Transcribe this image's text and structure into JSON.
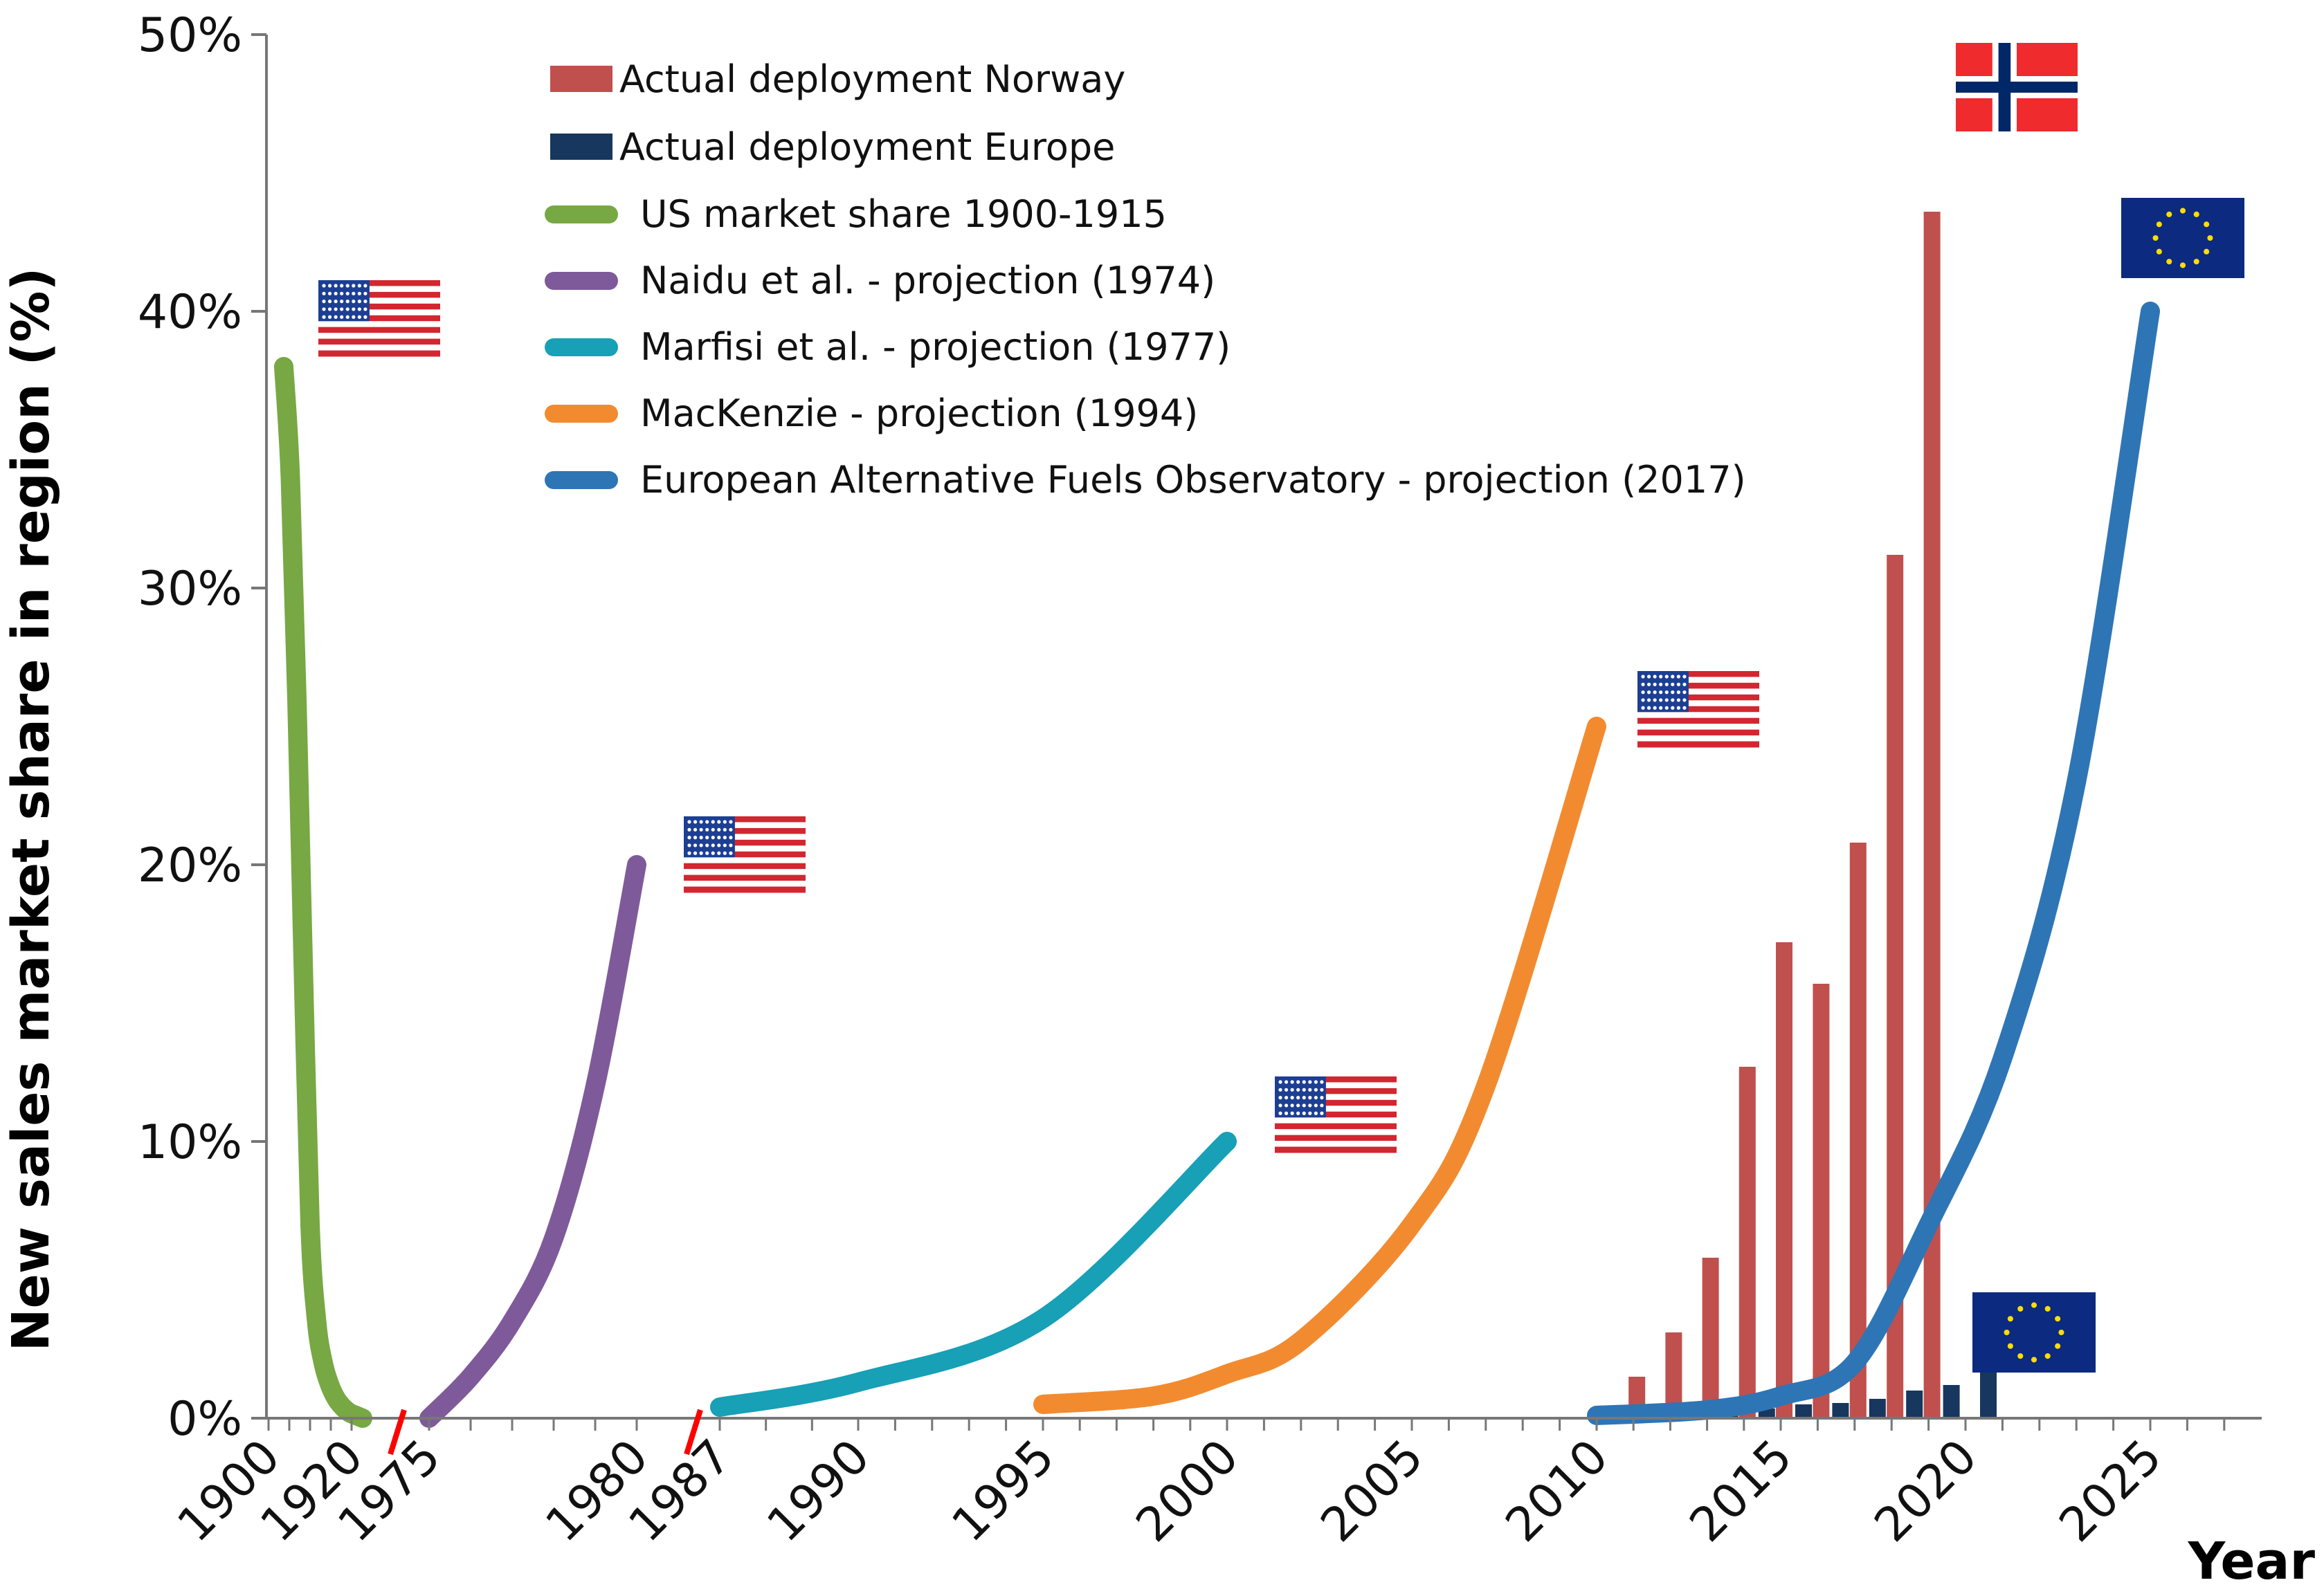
{
  "chart_data": {
    "type": "bar",
    "title": "",
    "xlabel": "Year",
    "ylabel": "New sales market share in region (%)",
    "ylim": [
      0,
      50
    ],
    "y_ticks": [
      "0%",
      "10%",
      "20%",
      "30%",
      "40%",
      "50%"
    ],
    "x_ticks": [
      "1900",
      "1920",
      "1975",
      "1980",
      "1987",
      "1990",
      "1995",
      "2000",
      "2005",
      "2010",
      "2015",
      "2020",
      "2025"
    ],
    "axis_breaks": [
      "1920-1975",
      "1980-1987"
    ],
    "legend_position": "top",
    "series": [
      {
        "name": "Actual deployment Norway",
        "type": "bar",
        "color": "#c0504d",
        "x": [
          2010,
          2011,
          2012,
          2013,
          2014,
          2015,
          2016,
          2017,
          2018,
          2019
        ],
        "values": [
          0.3,
          1.5,
          3.1,
          5.8,
          12.7,
          17.2,
          15.7,
          20.8,
          31.2,
          43.6
        ]
      },
      {
        "name": "Actual deployment Europe",
        "type": "bar",
        "color": "#17375e",
        "x": [
          2010,
          2011,
          2012,
          2013,
          2014,
          2015,
          2016,
          2017,
          2018,
          2019,
          2020
        ],
        "values": [
          0.0,
          0.05,
          0.1,
          0.2,
          0.35,
          0.5,
          0.55,
          0.7,
          1.0,
          1.2,
          1.9
        ]
      },
      {
        "name": "US market share 1900-1915",
        "type": "line",
        "color": "#77a844",
        "x": [
          1900,
          1901,
          1902,
          1903,
          1904,
          1905,
          1906,
          1907,
          1908,
          1909,
          1910,
          1911,
          1912
        ],
        "values": [
          38,
          34,
          26,
          16,
          7,
          3.5,
          2,
          1.2,
          0.7,
          0.4,
          0.2,
          0.1,
          0
        ]
      },
      {
        "name": "Naidu et al. - projection (1974)",
        "type": "line",
        "color": "#7f5a9a",
        "x": [
          1975,
          1976,
          1977,
          1978,
          1979,
          1980
        ],
        "values": [
          0,
          1.5,
          3.5,
          6.5,
          12,
          20
        ]
      },
      {
        "name": "Marfisi et al. - projection (1977)",
        "type": "line",
        "color": "#17a0b6",
        "x": [
          1987,
          1990,
          1995,
          2000
        ],
        "values": [
          0.4,
          1.3,
          3.6,
          10
        ]
      },
      {
        "name": "MacKenzie - projection (1994)",
        "type": "line",
        "color": "#f28b30",
        "x": [
          1995,
          1998,
          2000,
          2002,
          2005,
          2007,
          2010
        ],
        "values": [
          0.5,
          0.8,
          1.6,
          2.8,
          7,
          12,
          25
        ]
      },
      {
        "name": "European Alternative Fuels Observatory - projection (2017)",
        "type": "line",
        "color": "#2e75b6",
        "x": [
          2010,
          2013,
          2015,
          2017,
          2019,
          2021,
          2023,
          2025
        ],
        "values": [
          0.1,
          0.3,
          0.8,
          2,
          7,
          13,
          23,
          40
        ]
      }
    ],
    "annotations": [
      {
        "type": "flag",
        "icon": "us-flag-icon",
        "near_x": 1902,
        "near_y": 40
      },
      {
        "type": "flag",
        "icon": "us-flag-icon",
        "near_x": 1981,
        "near_y": 20
      },
      {
        "type": "flag",
        "icon": "us-flag-icon",
        "near_x": 2001,
        "near_y": 11
      },
      {
        "type": "flag",
        "icon": "us-flag-icon",
        "near_x": 2011,
        "near_y": 26
      },
      {
        "type": "flag",
        "icon": "norway-flag-icon",
        "near_x": 2021,
        "near_y": 48
      },
      {
        "type": "flag",
        "icon": "eu-flag-icon",
        "near_x": 2025,
        "near_y": 43
      },
      {
        "type": "flag",
        "icon": "eu-flag-icon",
        "near_x": 2021,
        "near_y": 3
      }
    ]
  }
}
